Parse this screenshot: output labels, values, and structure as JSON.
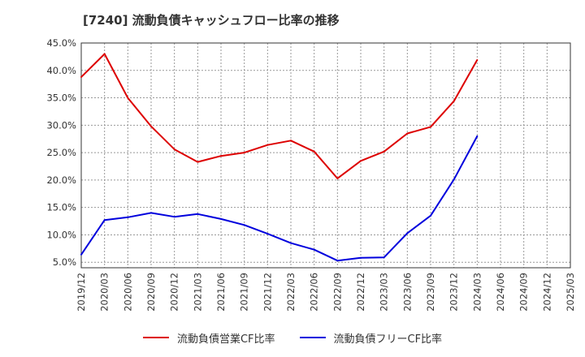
{
  "chart_data": {
    "type": "line",
    "title": "[7240]  流動負債キャッシュフロー比率の推移",
    "xlabel": "",
    "ylabel": "",
    "ylim": [
      4.0,
      45.0
    ],
    "grid": true,
    "legend_position": "bottom",
    "y_ticks": [
      "5.0%",
      "10.0%",
      "15.0%",
      "20.0%",
      "25.0%",
      "30.0%",
      "35.0%",
      "40.0%",
      "45.0%"
    ],
    "x_ticks": [
      "2019/12",
      "2020/03",
      "2020/06",
      "2020/09",
      "2020/12",
      "2021/03",
      "2021/06",
      "2021/09",
      "2021/12",
      "2022/03",
      "2022/06",
      "2022/09",
      "2022/12",
      "2023/03",
      "2023/06",
      "2023/09",
      "2023/12",
      "2024/03",
      "2024/06",
      "2024/09",
      "2024/12",
      "2025/03"
    ],
    "x": [
      "2019/12",
      "2020/03",
      "2020/06",
      "2020/09",
      "2020/12",
      "2021/03",
      "2021/06",
      "2021/09",
      "2021/12",
      "2022/03",
      "2022/06",
      "2022/09",
      "2022/12",
      "2023/03",
      "2023/06",
      "2023/09",
      "2023/12",
      "2024/03"
    ],
    "series": [
      {
        "name": "流動負債営業CF比率",
        "color": "#dd0000",
        "values": [
          38.8,
          43.0,
          35.0,
          29.8,
          25.6,
          23.3,
          24.4,
          25.0,
          26.4,
          27.2,
          25.2,
          20.3,
          23.5,
          25.2,
          28.5,
          29.7,
          34.4,
          41.9
        ]
      },
      {
        "name": "流動負債フリーCF比率",
        "color": "#0000dd",
        "values": [
          6.4,
          12.7,
          13.2,
          14.0,
          13.3,
          13.8,
          12.9,
          11.8,
          10.2,
          8.5,
          7.3,
          5.3,
          5.8,
          5.9,
          10.3,
          13.5,
          20.1,
          28.0
        ]
      }
    ]
  }
}
